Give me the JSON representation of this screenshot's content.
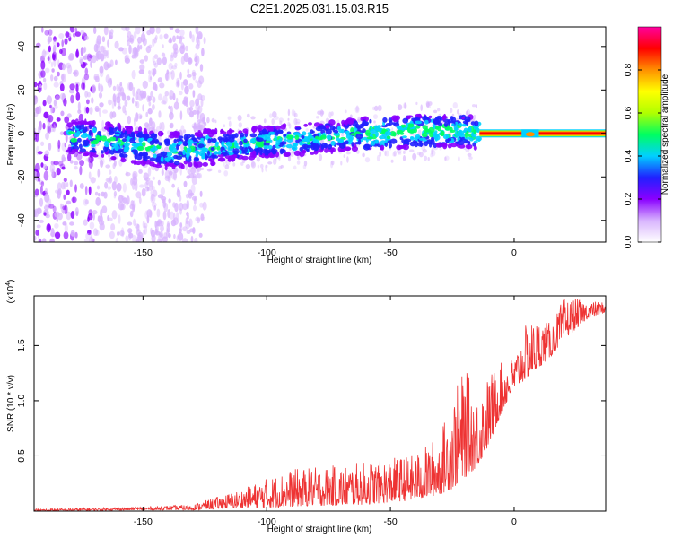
{
  "title": "C2E1.2025.031.15.03.R15",
  "chart_data": [
    {
      "type": "heatmap",
      "xlabel": "Height of straight line (km)",
      "ylabel": "Frequency (Hz)",
      "xlim": [
        -194,
        37
      ],
      "ylim": [
        -50,
        49
      ],
      "xticks": [
        -150,
        -100,
        -50,
        0
      ],
      "xtick_labels": [
        "-150",
        "-100",
        "-50",
        "0"
      ],
      "yticks": [
        -40,
        -20,
        0,
        20,
        40
      ],
      "ytick_labels": [
        "-40",
        "-20",
        "0",
        "20",
        "40"
      ],
      "grid": false,
      "colorbar": {
        "label": "Normalized spectral amplitude",
        "range": [
          0,
          1
        ],
        "ticks": [
          0.0,
          0.2,
          0.4,
          0.6,
          0.8
        ],
        "tick_labels": [
          "0.0",
          "0.2",
          "0.4",
          "0.6",
          "0.8"
        ],
        "colors": [
          "#ffffff",
          "#d8b4fe",
          "#8a00ff",
          "#2020ff",
          "#00d0ff",
          "#00ff60",
          "#b0ff00",
          "#ffff00",
          "#ff9000",
          "#ff0000",
          "#ff00a0"
        ]
      },
      "ridge": {
        "x": [
          -190,
          -175,
          -160,
          -150,
          -140,
          -130,
          -120,
          -110,
          -100,
          -90,
          -80,
          -70,
          -60,
          -50,
          -40,
          -30,
          -20,
          -15,
          -10,
          0,
          5,
          10,
          20,
          30,
          37
        ],
        "frequency": [
          0,
          -2,
          -4,
          -6,
          -8,
          -7,
          -6,
          -5,
          -4,
          -3,
          -2,
          -1,
          0,
          0,
          1,
          1,
          1,
          0,
          0,
          0,
          -1,
          0,
          0,
          0,
          0
        ]
      },
      "band_start_x": -14,
      "band_end_x": 37
    },
    {
      "type": "line",
      "xlabel": "Height of straight line (km)",
      "ylabel": "SNR (10 * v/v)",
      "y_multiplier": "(x10^4)",
      "xlim": [
        -194,
        37
      ],
      "ylim": [
        0,
        1.95
      ],
      "xticks": [
        -150,
        -100,
        -50,
        0
      ],
      "xtick_labels": [
        "-150",
        "-100",
        "-50",
        "0"
      ],
      "yticks": [
        0.5,
        1.0,
        1.5
      ],
      "ytick_labels": [
        "0.5",
        "1.0",
        "1.5"
      ],
      "grid": false,
      "series": [
        {
          "color": "#ee3333",
          "envelope": {
            "x": [
              -194,
              -170,
              -150,
              -130,
              -120,
              -110,
              -100,
              -90,
              -80,
              -70,
              -60,
              -50,
              -40,
              -30,
              -25,
              -20,
              -15,
              -10,
              -5,
              0,
              5,
              10,
              15,
              20,
              25,
              30,
              37
            ],
            "min": [
              0.0,
              0.005,
              0.01,
              0.01,
              0.02,
              0.03,
              0.03,
              0.04,
              0.05,
              0.05,
              0.06,
              0.08,
              0.1,
              0.15,
              0.2,
              0.3,
              0.4,
              0.6,
              0.9,
              1.1,
              1.2,
              1.3,
              1.4,
              1.55,
              1.65,
              1.75,
              1.8
            ],
            "max": [
              0.02,
              0.03,
              0.04,
              0.06,
              0.13,
              0.2,
              0.3,
              0.38,
              0.4,
              0.42,
              0.45,
              0.48,
              0.52,
              0.7,
              1.05,
              1.3,
              1.05,
              1.25,
              1.35,
              1.4,
              1.7,
              1.75,
              1.7,
              1.93,
              1.93,
              1.9,
              1.9
            ]
          }
        }
      ]
    }
  ]
}
